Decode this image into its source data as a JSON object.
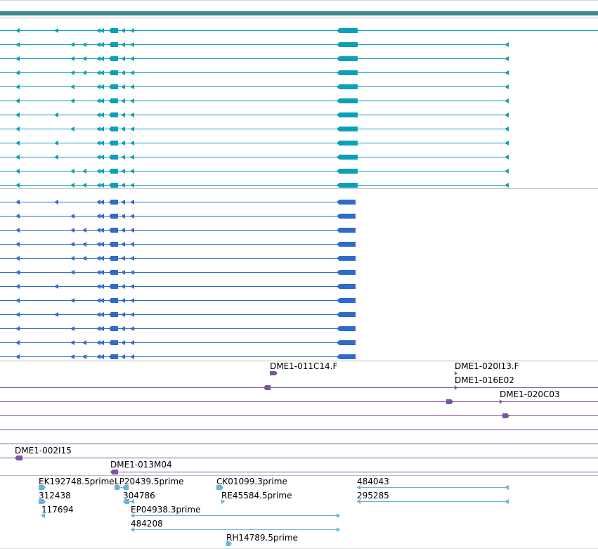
{
  "colors": {
    "top_bar": "#3e8a8c",
    "gene_teal": "#0aa0b8",
    "gene_blue": "#2f6bcc",
    "clone": "#7a52a6",
    "est": "#6cb2dd",
    "separator": "#cccccc"
  },
  "labels": {
    "dme1_011c14f": "DME1-011C14.F",
    "dme1_020i13f": "DME1-020I13.F",
    "dme1_016e02": "DME1-016E02",
    "dme1_020c03": "DME1-020C03",
    "dme1_002i15": "DME1-002I15",
    "dme1_013m04": "DME1-013M04",
    "ek192748": "EK192748.5prime",
    "lp20439": "LP20439.5prime",
    "ck01099": "CK01099.3prime",
    "est_484043": "484043",
    "est_312438": "312438",
    "est_304786": "304786",
    "re45584": "RE45584.5prime",
    "est_295285": "295285",
    "est_117694": "117694",
    "ep04938": "EP04938.3prime",
    "est_484208": "484208",
    "rh14789": "RH14789.5prime"
  }
}
